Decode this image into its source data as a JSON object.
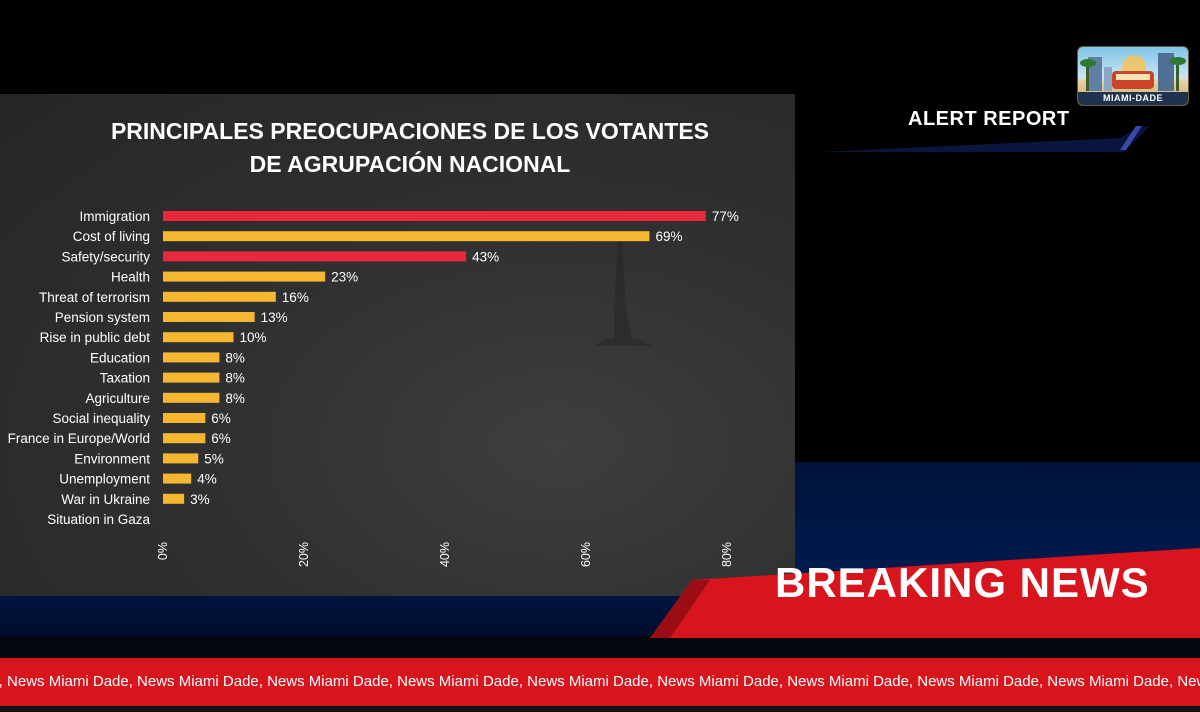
{
  "chart_data": {
    "type": "bar",
    "orientation": "horizontal",
    "title": "PRINCIPALES PREOCUPACIONES DE LOS VOTANTES\nDE AGRUPACIÓN NACIONAL",
    "categories": [
      "Immigration",
      "Cost of living",
      "Safety/security",
      "Health",
      "Threat of terrorism",
      "Pension system",
      "Rise in public debt",
      "Education",
      "Taxation",
      "Agriculture",
      "Social inequality",
      "France in Europe/World",
      "Environment",
      "Unemployment",
      "War in Ukraine",
      "Situation in Gaza"
    ],
    "values": [
      77,
      69,
      43,
      23,
      16,
      13,
      10,
      8,
      8,
      8,
      6,
      6,
      5,
      4,
      3,
      null
    ],
    "value_labels": [
      "77%",
      "69%",
      "43%",
      "23%",
      "16%",
      "13%",
      "10%",
      "8%",
      "8%",
      "8%",
      "6%",
      "6%",
      "5%",
      "4%",
      "3%",
      ""
    ],
    "bar_colors": [
      "#e8283f",
      "#f6b730",
      "#e8283f",
      "#f6b730",
      "#f6b730",
      "#f6b730",
      "#f6b730",
      "#f6b730",
      "#f6b730",
      "#f6b730",
      "#f6b730",
      "#f6b730",
      "#f6b730",
      "#f6b730",
      "#f6b730",
      "#f6b730"
    ],
    "x_ticks": [
      "0%",
      "20%",
      "40%",
      "60%",
      "80%"
    ],
    "xlim": [
      0,
      80
    ],
    "grid": false,
    "background": "#2e2e2e"
  },
  "header": {
    "alert_report": "ALERT REPORT",
    "logo_label": "MIAMI-DADE"
  },
  "breaking": {
    "label": "BREAKING NEWS"
  },
  "ticker": {
    "text": "de, News Miami Dade, News Miami Dade, News Miami Dade, News Miami Dade, News Miami Dade, News Miami Dade, News Miami Dade, News Miami Dade, News Miami Dade, News Miami Dade, News Miami Dade"
  },
  "colors": {
    "ticker_red": "#d8141d",
    "breaking_red": "#d8141d",
    "accent_navy": "#001a4d"
  }
}
